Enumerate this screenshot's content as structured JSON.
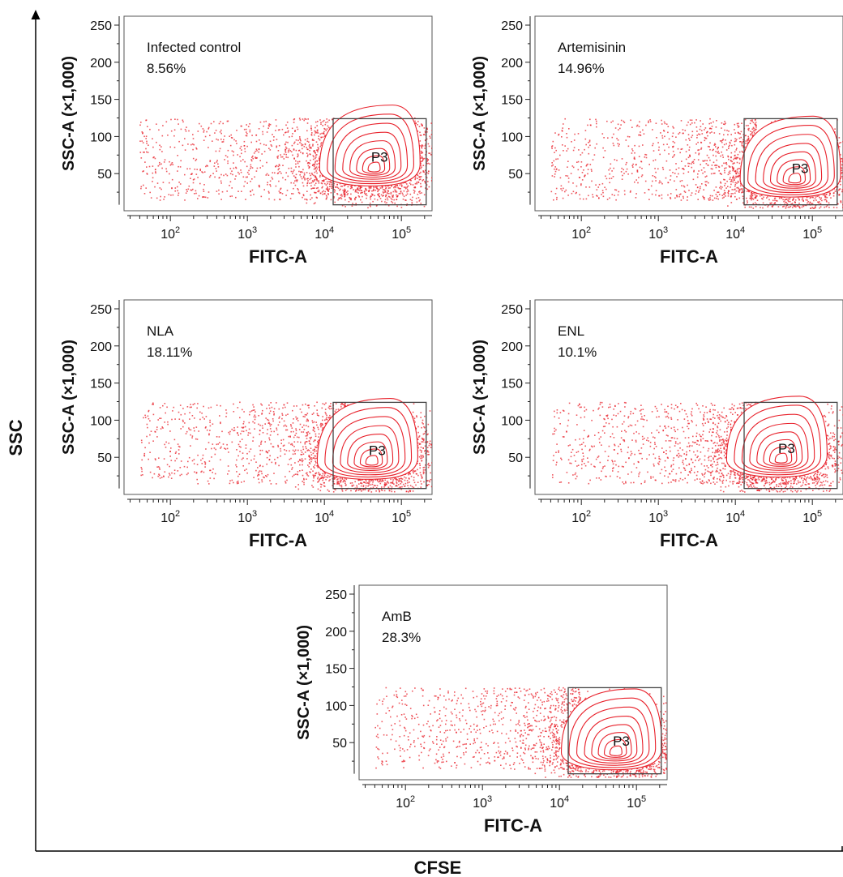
{
  "figure": {
    "y_axis_label": "SSC",
    "x_axis_label": "CFSE"
  },
  "chart_data": [
    {
      "type": "scatter",
      "subtype": "flow-cytometry-density-contour",
      "title": "Infected control",
      "percentage": "8.56%",
      "gate_label": "P3",
      "xlabel": "FITC-A",
      "ylabel": "SSC-A (×1,000)",
      "x_scale": "log",
      "xlim": [
        25,
        250000
      ],
      "ylim": [
        0,
        262
      ],
      "x_ticks": [
        100,
        1000,
        10000,
        100000
      ],
      "x_tick_labels": [
        [
          "10",
          "2"
        ],
        [
          "10",
          "3"
        ],
        [
          "10",
          "4"
        ],
        [
          "10",
          "5"
        ]
      ],
      "y_ticks": [
        50,
        100,
        150,
        200,
        250
      ],
      "gate": {
        "x": [
          13000,
          210000
        ],
        "y": [
          8,
          124
        ]
      },
      "density_peak": {
        "x": 45000,
        "y": 55
      },
      "color": "#e8202a"
    },
    {
      "type": "scatter",
      "subtype": "flow-cytometry-density-contour",
      "title": "Artemisinin",
      "percentage": "14.96%",
      "gate_label": "P3",
      "xlabel": "FITC-A",
      "ylabel": "SSC-A (×1,000)",
      "x_scale": "log",
      "xlim": [
        25,
        250000
      ],
      "ylim": [
        0,
        262
      ],
      "x_ticks": [
        100,
        1000,
        10000,
        100000
      ],
      "x_tick_labels": [
        [
          "10",
          "2"
        ],
        [
          "10",
          "3"
        ],
        [
          "10",
          "4"
        ],
        [
          "10",
          "5"
        ]
      ],
      "y_ticks": [
        50,
        100,
        150,
        200,
        250
      ],
      "gate": {
        "x": [
          13000,
          210000
        ],
        "y": [
          8,
          124
        ]
      },
      "density_peak": {
        "x": 60000,
        "y": 40
      },
      "color": "#e8202a"
    },
    {
      "type": "scatter",
      "subtype": "flow-cytometry-density-contour",
      "title": "NLA",
      "percentage": "18.11%",
      "gate_label": "P3",
      "xlabel": "FITC-A",
      "ylabel": "SSC-A (×1,000)",
      "x_scale": "log",
      "xlim": [
        25,
        250000
      ],
      "ylim": [
        0,
        262
      ],
      "x_ticks": [
        100,
        1000,
        10000,
        100000
      ],
      "x_tick_labels": [
        [
          "10",
          "2"
        ],
        [
          "10",
          "3"
        ],
        [
          "10",
          "4"
        ],
        [
          "10",
          "5"
        ]
      ],
      "y_ticks": [
        50,
        100,
        150,
        200,
        250
      ],
      "gate": {
        "x": [
          13000,
          210000
        ],
        "y": [
          8,
          124
        ]
      },
      "density_peak": {
        "x": 42000,
        "y": 42
      },
      "color": "#e8202a"
    },
    {
      "type": "scatter",
      "subtype": "flow-cytometry-density-contour",
      "title": "ENL",
      "percentage": "10.1%",
      "gate_label": "P3",
      "xlabel": "FITC-A",
      "ylabel": "SSC-A (×1,000)",
      "x_scale": "log",
      "xlim": [
        25,
        250000
      ],
      "ylim": [
        0,
        262
      ],
      "x_ticks": [
        100,
        1000,
        10000,
        100000
      ],
      "x_tick_labels": [
        [
          "10",
          "2"
        ],
        [
          "10",
          "3"
        ],
        [
          "10",
          "4"
        ],
        [
          "10",
          "5"
        ]
      ],
      "y_ticks": [
        50,
        100,
        150,
        200,
        250
      ],
      "gate": {
        "x": [
          13000,
          210000
        ],
        "y": [
          8,
          124
        ]
      },
      "density_peak": {
        "x": 40000,
        "y": 45
      },
      "color": "#e8202a"
    },
    {
      "type": "scatter",
      "subtype": "flow-cytometry-density-contour",
      "title": "AmB",
      "percentage": "28.3%",
      "gate_label": "P3",
      "xlabel": "FITC-A",
      "ylabel": "SSC-A (×1,000)",
      "x_scale": "log",
      "xlim": [
        25,
        250000
      ],
      "ylim": [
        0,
        262
      ],
      "x_ticks": [
        100,
        1000,
        10000,
        100000
      ],
      "x_tick_labels": [
        [
          "10",
          "2"
        ],
        [
          "10",
          "3"
        ],
        [
          "10",
          "4"
        ],
        [
          "10",
          "5"
        ]
      ],
      "y_ticks": [
        50,
        100,
        150,
        200,
        250
      ],
      "gate": {
        "x": [
          13000,
          210000
        ],
        "y": [
          8,
          124
        ]
      },
      "density_peak": {
        "x": 55000,
        "y": 35
      },
      "color": "#e8202a"
    }
  ]
}
